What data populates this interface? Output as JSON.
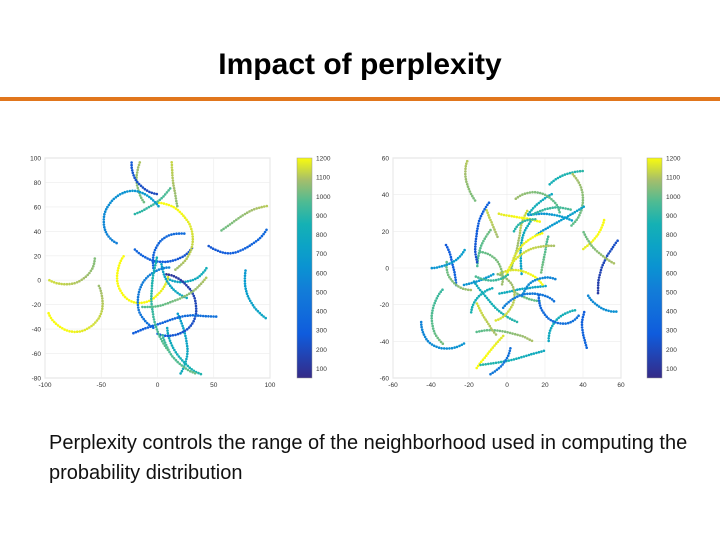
{
  "slide": {
    "title": "Impact of perplexity",
    "caption": "Perplexity controls the range of the neighborhood used in computing the probability distribution"
  },
  "colors": {
    "accent_rule": "#e1761d",
    "plot_border": "#d9d9d9",
    "grid": "#ececec"
  },
  "chart_data": [
    {
      "type": "scatter",
      "title": "",
      "xlabel": "",
      "ylabel": "",
      "xlim": [
        -100,
        100
      ],
      "ylim": [
        -80,
        100
      ],
      "xticks": [
        "-100",
        "-50",
        "0",
        "50",
        "100"
      ],
      "yticks": [
        "100",
        "80",
        "60",
        "40",
        "20",
        "0",
        "-20",
        "-40",
        "-60",
        "-80"
      ],
      "grid": true,
      "colormap": "parula",
      "colorbar_ticks": [
        "1200",
        "1100",
        "1000",
        "900",
        "800",
        "700",
        "600",
        "500",
        "400",
        "300",
        "200",
        "100"
      ],
      "colorbar_range": [
        50,
        1200
      ]
    },
    {
      "type": "scatter",
      "title": "",
      "xlabel": "",
      "ylabel": "",
      "xlim": [
        -60,
        60
      ],
      "ylim": [
        -60,
        60
      ],
      "xticks": [
        "-60",
        "-40",
        "-20",
        "0",
        "20",
        "40",
        "60"
      ],
      "yticks": [
        "60",
        "40",
        "20",
        "0",
        "-20",
        "-40",
        "-60"
      ],
      "grid": true,
      "colormap": "parula",
      "colorbar_ticks": [
        "1200",
        "1100",
        "1000",
        "900",
        "800",
        "700",
        "600",
        "500",
        "400",
        "300",
        "200",
        "100"
      ],
      "colorbar_range": [
        50,
        1200
      ]
    }
  ]
}
